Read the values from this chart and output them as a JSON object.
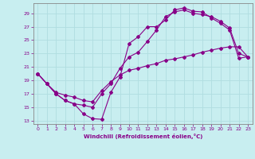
{
  "xlabel": "Windchill (Refroidissement éolien,°C)",
  "background_color": "#c8eef0",
  "grid_color": "#b0dde0",
  "line_color": "#880088",
  "xlim": [
    -0.5,
    23.5
  ],
  "ylim": [
    12.5,
    30.5
  ],
  "xticks": [
    0,
    1,
    2,
    3,
    4,
    5,
    6,
    7,
    8,
    9,
    10,
    11,
    12,
    13,
    14,
    15,
    16,
    17,
    18,
    19,
    20,
    21,
    22,
    23
  ],
  "yticks": [
    13,
    15,
    17,
    19,
    21,
    23,
    25,
    27,
    29
  ],
  "line1_x": [
    0,
    1,
    2,
    3,
    4,
    5,
    6,
    7,
    8,
    9,
    10,
    11,
    12,
    13,
    14,
    15,
    16,
    17,
    18,
    19,
    20,
    21,
    22,
    23
  ],
  "line1_y": [
    20.0,
    18.5,
    17.0,
    16.0,
    15.5,
    14.0,
    13.3,
    13.2,
    17.2,
    19.5,
    24.5,
    25.5,
    27.0,
    27.0,
    28.0,
    29.5,
    29.8,
    29.3,
    29.2,
    28.3,
    27.5,
    26.5,
    22.3,
    22.5
  ],
  "line2_x": [
    0,
    1,
    2,
    3,
    4,
    5,
    6,
    7,
    8,
    9,
    10,
    11,
    12,
    13,
    14,
    15,
    16,
    17,
    18,
    19,
    20,
    21,
    22,
    23
  ],
  "line2_y": [
    20.0,
    18.5,
    17.0,
    16.0,
    15.5,
    15.3,
    15.0,
    17.0,
    18.5,
    20.8,
    22.5,
    23.2,
    24.8,
    26.5,
    28.5,
    29.2,
    29.5,
    29.0,
    28.8,
    28.5,
    27.8,
    26.8,
    23.0,
    22.5
  ],
  "line3_x": [
    0,
    1,
    2,
    3,
    4,
    5,
    6,
    7,
    8,
    9,
    10,
    11,
    12,
    13,
    14,
    15,
    16,
    17,
    18,
    19,
    20,
    21,
    22,
    23
  ],
  "line3_y": [
    20.0,
    18.5,
    17.2,
    16.8,
    16.5,
    16.0,
    15.8,
    17.5,
    18.8,
    19.8,
    20.5,
    20.8,
    21.2,
    21.5,
    22.0,
    22.2,
    22.5,
    22.8,
    23.2,
    23.5,
    23.8,
    24.0,
    24.0,
    22.5
  ]
}
